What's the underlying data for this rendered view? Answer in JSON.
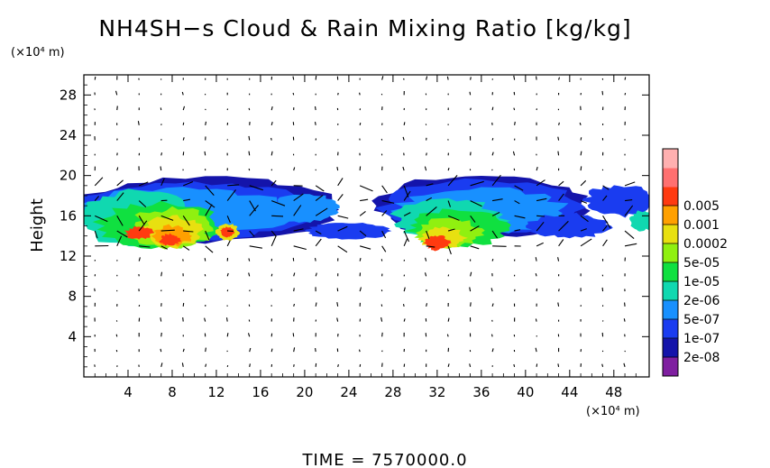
{
  "chart_data": {
    "type": "heatmap",
    "title": "NH4SH−s Cloud & Rain Mixing Ratio [kg/kg]",
    "x_unit": "(×10⁴ m)",
    "y_unit": "(×10⁴ m)",
    "ylabel": "Height",
    "xlabel": "",
    "x_ticks": [
      4,
      8,
      12,
      16,
      20,
      24,
      28,
      32,
      36,
      40,
      44,
      48
    ],
    "y_ticks": [
      4,
      8,
      12,
      16,
      20,
      24,
      28
    ],
    "xlim": [
      0,
      51.2
    ],
    "ylim": [
      0,
      30
    ],
    "grid": false,
    "colorbar_levels": [
      "2e-08",
      "1e-07",
      "5e-07",
      "2e-06",
      "1e-05",
      "5e-05",
      "0.0002",
      "0.001",
      "0.005"
    ],
    "colorbar_colors": [
      "#7f1fa0",
      "#1414aa",
      "#1a3cf0",
      "#1890ff",
      "#10d8b0",
      "#10e040",
      "#90f010",
      "#e8e010",
      "#ffa000",
      "#ff3a10",
      "#ff7070",
      "#ffb0b0"
    ],
    "cloud_regions": [
      {
        "x": [
          0.0,
          22.0
        ],
        "y": [
          13.0,
          20.0
        ],
        "peak": "0.005"
      },
      {
        "x": [
          21.0,
          51.2
        ],
        "y": [
          12.5,
          20.0
        ],
        "peak": "0.005"
      }
    ],
    "vectors": "wind field arrows over the whole domain",
    "time_label": "TIME  =  7570000.0"
  },
  "colors": {
    "background": "#ffffff",
    "axis": "#000000"
  }
}
